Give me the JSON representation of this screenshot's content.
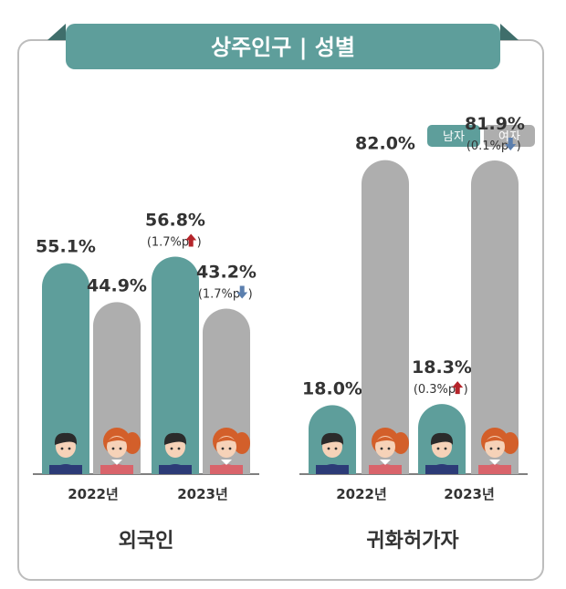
{
  "title": "상주인구 | 성별",
  "colors": {
    "male": "#5e9e9b",
    "female": "#aeaeae",
    "title_bg": "#5e9e9b",
    "title_fold": "#3f6e6b",
    "up": "#b5242a",
    "down": "#5b7fae",
    "text": "#333333",
    "frame": "#bdbdbd"
  },
  "legend": [
    {
      "label": "남자",
      "color": "#5e9e9b"
    },
    {
      "label": "여자",
      "color": "#aeaeae"
    }
  ],
  "chart_data": [
    {
      "type": "bar",
      "group_label": "외국인",
      "categories": [
        "2022년",
        "2023년"
      ],
      "series": [
        {
          "name": "남자",
          "values": [
            55.1,
            56.8
          ]
        },
        {
          "name": "여자",
          "values": [
            44.9,
            43.2
          ]
        }
      ],
      "value_labels": [
        [
          "55.1%",
          "44.9%"
        ],
        [
          "56.8%",
          "43.2%"
        ]
      ],
      "changes": [
        [
          null,
          null
        ],
        [
          {
            "text": "1.7%p",
            "dir": "up"
          },
          {
            "text": "1.7%p",
            "dir": "down"
          }
        ]
      ],
      "ylim": [
        0,
        100
      ]
    },
    {
      "type": "bar",
      "group_label": "귀화허가자",
      "categories": [
        "2022년",
        "2023년"
      ],
      "series": [
        {
          "name": "남자",
          "values": [
            18.0,
            18.3
          ]
        },
        {
          "name": "여자",
          "values": [
            82.0,
            81.9
          ]
        }
      ],
      "value_labels": [
        [
          "18.0%",
          "82.0%"
        ],
        [
          "18.3%",
          "81.9%"
        ]
      ],
      "changes": [
        [
          null,
          null
        ],
        [
          {
            "text": "0.3%p",
            "dir": "up"
          },
          {
            "text": "0.1%p",
            "dir": "down"
          }
        ]
      ],
      "ylim": [
        0,
        100
      ]
    }
  ]
}
